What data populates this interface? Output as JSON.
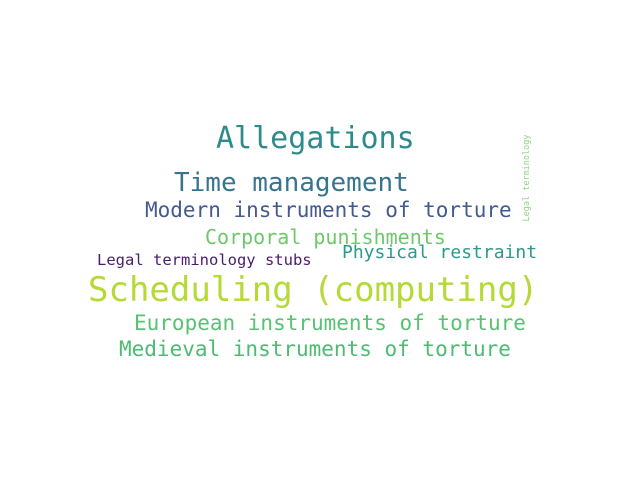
{
  "words": [
    {
      "text": "Allegations",
      "color": "#2e8b8c"
    },
    {
      "text": "Time management",
      "color": "#37758f"
    },
    {
      "text": "Modern instruments of torture",
      "color": "#435a90"
    },
    {
      "text": "Corporal punishments",
      "color": "#6cc96a"
    },
    {
      "text": "Legal terminology stubs",
      "color": "#4a1c6e"
    },
    {
      "text": "Physical restraint",
      "color": "#2a9a8a"
    },
    {
      "text": "Scheduling (computing)",
      "color": "#b5d936"
    },
    {
      "text": "European instruments of torture",
      "color": "#58c272"
    },
    {
      "text": "Medieval instruments of torture",
      "color": "#4dbb72"
    },
    {
      "text": "Legal terminology",
      "color": "#8ed680"
    }
  ]
}
